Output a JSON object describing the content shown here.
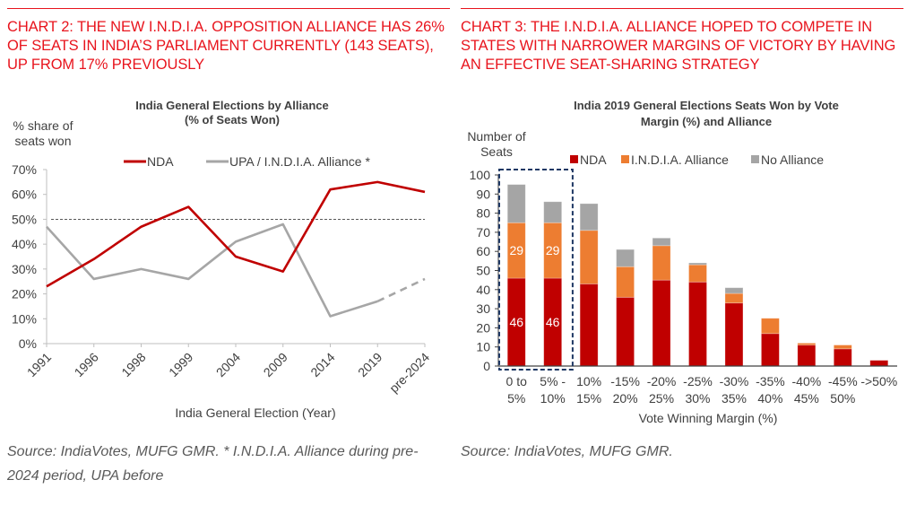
{
  "left_panel": {
    "heading": "CHART 2: THE NEW I.N.D.I.A. OPPOSITION ALLIANCE HAS 26% OF SEATS IN INDIA’S PARLIAMENT CURRENTLY (143 SEATS), UP FROM 17% PREVIOUSLY",
    "source": "Source: IndiaVotes, MUFG GMR.  * I.N.D.I.A. Alliance during pre-2024 period, UPA before"
  },
  "right_panel": {
    "heading": "CHART 3: THE I.N.D.I.A. ALLIANCE HOPED TO COMPETE IN STATES WITH NARROWER MARGINS OF VICTORY BY HAVING AN EFFECTIVE SEAT-SHARING STRATEGY",
    "source": "Source: IndiaVotes, MUFG GMR."
  },
  "colors": {
    "heading_red": "#e8141d",
    "nda": "#c00000",
    "india": "#ed7d31",
    "no_alliance": "#a5a5a5",
    "upa_line": "#a6a6a6",
    "highlight_box": "#1f3864"
  },
  "chart_data": [
    {
      "type": "line",
      "title_line1": "India General Elections by Alliance",
      "title_line2": "(% of Seats Won)",
      "ylabel_line1": "% share of",
      "ylabel_line2": "seats won",
      "xlabel": "India General Election (Year)",
      "categories": [
        "1991",
        "1996",
        "1998",
        "1999",
        "2004",
        "2009",
        "2014",
        "2019",
        "pre-2024"
      ],
      "ylim": [
        0,
        70
      ],
      "yticks": [
        0,
        10,
        20,
        30,
        40,
        50,
        60,
        70
      ],
      "ytick_labels": [
        "0%",
        "10%",
        "20%",
        "30%",
        "40%",
        "50%",
        "60%",
        "70%"
      ],
      "reference_line": {
        "value": 50,
        "style": "dashed"
      },
      "legend_position": "top",
      "series": [
        {
          "name": "NDA",
          "values": [
            23,
            34,
            47,
            55,
            35,
            29,
            62,
            65,
            61
          ]
        },
        {
          "name": "UPA / I.N.D.I.A. Alliance *",
          "values": [
            47,
            26,
            30,
            26,
            41,
            48,
            11,
            17,
            26
          ],
          "dashed_last_segment": true
        }
      ]
    },
    {
      "type": "bar",
      "stacked": true,
      "title_line1": "India 2019 General Elections Seats Won by Vote",
      "title_line2": "Margin (%) and Alliance",
      "ylabel_line1": "Number of",
      "ylabel_line2": "Seats",
      "xlabel": "Vote Winning Margin (%)",
      "categories": [
        [
          "0 to",
          "5%"
        ],
        [
          "5% -",
          "10%"
        ],
        [
          "10%",
          "15%"
        ],
        [
          "-15%",
          "20%"
        ],
        [
          "-20%",
          "25%"
        ],
        [
          "-25%",
          "30%"
        ],
        [
          "-30%",
          "35%"
        ],
        [
          "-35%",
          "40%"
        ],
        [
          "-40%",
          "45%"
        ],
        [
          "-45%",
          "50%"
        ],
        [
          "->50%",
          ""
        ]
      ],
      "ylim": [
        0,
        100
      ],
      "yticks": [
        0,
        10,
        20,
        30,
        40,
        50,
        60,
        70,
        80,
        90,
        100
      ],
      "legend_position": "top",
      "series": [
        {
          "name": "NDA",
          "values": [
            46,
            46,
            43,
            36,
            45,
            44,
            33,
            17,
            11,
            9,
            3
          ]
        },
        {
          "name": "I.N.D.I.A. Alliance",
          "values": [
            29,
            29,
            28,
            16,
            18,
            9,
            5,
            8,
            1,
            2,
            0
          ]
        },
        {
          "name": "No Alliance",
          "values": [
            20,
            11,
            14,
            9,
            4,
            1,
            3,
            0,
            0,
            0,
            0
          ]
        }
      ],
      "data_labels": [
        {
          "category_index": 0,
          "series": "NDA",
          "text": "46"
        },
        {
          "category_index": 1,
          "series": "NDA",
          "text": "46"
        },
        {
          "category_index": 0,
          "series": "I.N.D.I.A. Alliance",
          "text": "29"
        },
        {
          "category_index": 1,
          "series": "I.N.D.I.A. Alliance",
          "text": "29"
        }
      ],
      "highlighted_categories": [
        0,
        1
      ]
    }
  ]
}
